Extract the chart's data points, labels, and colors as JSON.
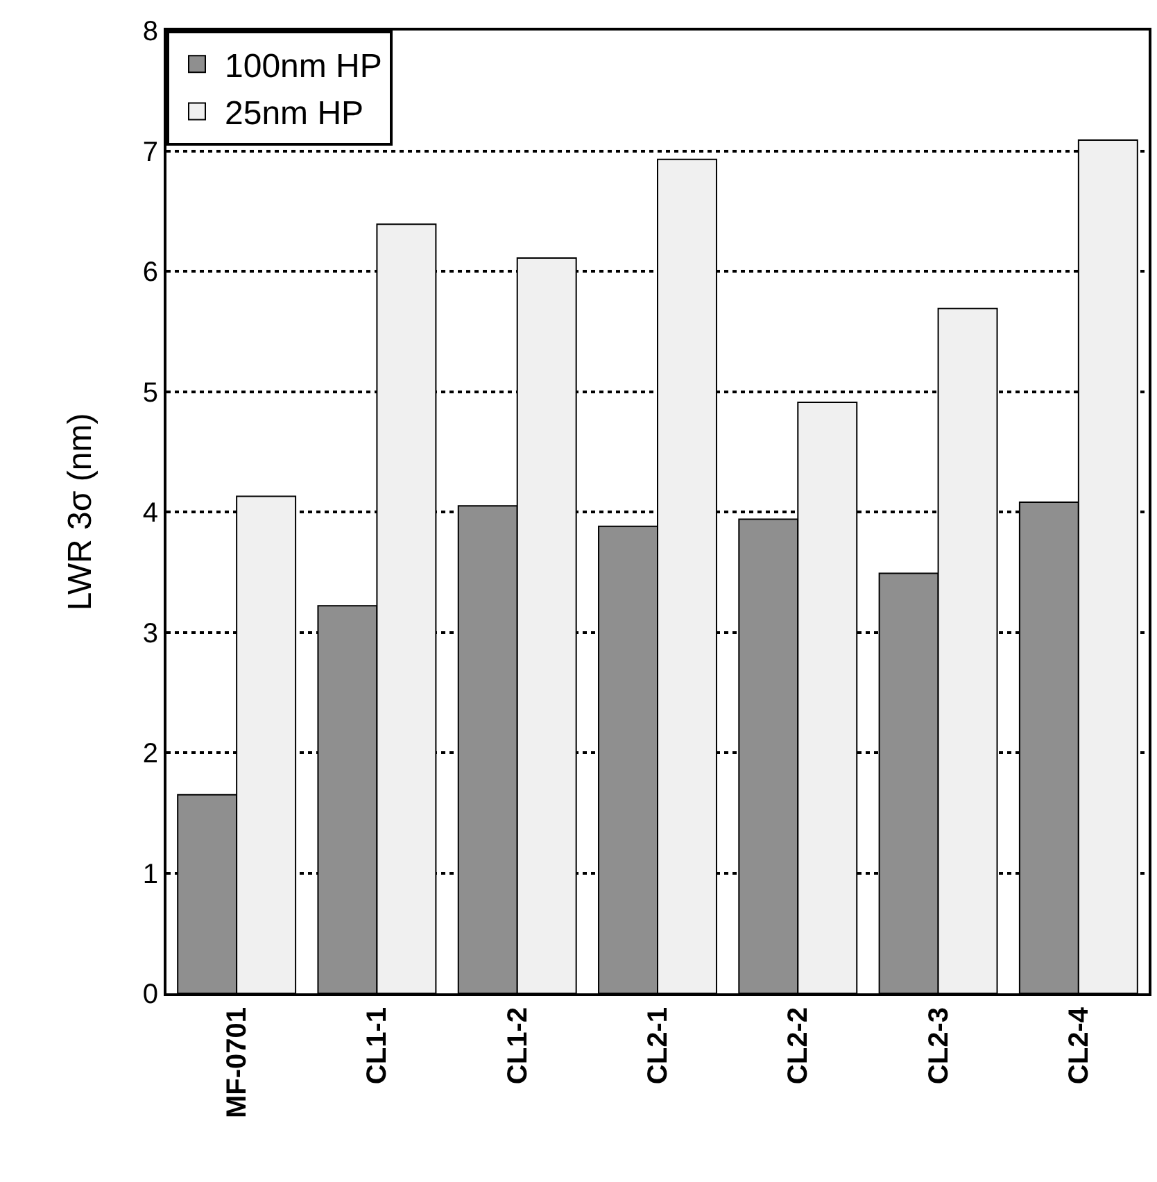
{
  "chart_data": {
    "type": "bar",
    "ylabel": "LWR 3σ (nm)",
    "categories": [
      "MF-0701",
      "CL1-1",
      "CL1-2",
      "CL2-1",
      "CL2-2",
      "CL2-3",
      "CL2-4"
    ],
    "series": [
      {
        "name": "100nm HP",
        "color": "#8f8f8f",
        "values": [
          1.65,
          3.22,
          4.05,
          3.88,
          3.94,
          3.49,
          4.08
        ]
      },
      {
        "name": "25nm HP",
        "color": "#f0f0f0",
        "values": [
          4.13,
          6.39,
          6.11,
          6.93,
          4.91,
          5.69,
          7.09
        ]
      }
    ],
    "ylim": [
      0,
      8
    ],
    "yticks": [
      0,
      1,
      2,
      3,
      4,
      5,
      6,
      7,
      8
    ],
    "grid": "y",
    "legend": "top left"
  }
}
